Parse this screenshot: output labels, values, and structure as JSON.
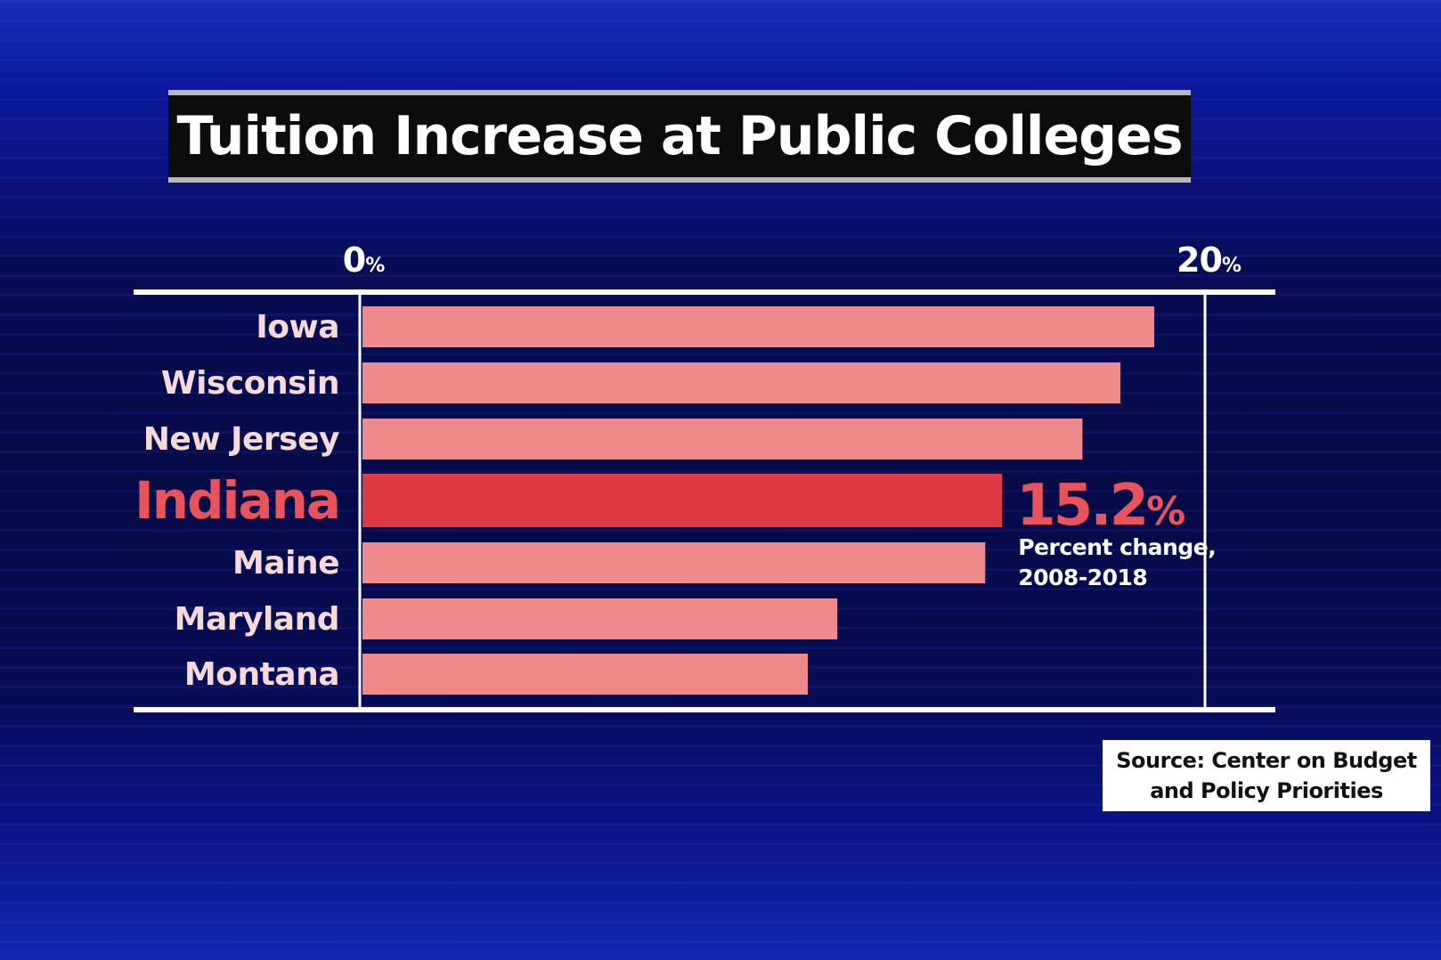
{
  "chart_data": {
    "type": "bar",
    "orientation": "horizontal",
    "title": "Tuition Increase at Public Colleges",
    "categories": [
      "Iowa",
      "Wisconsin",
      "New Jersey",
      "Indiana",
      "Maine",
      "Maryland",
      "Montana"
    ],
    "values": [
      18.8,
      18.0,
      17.1,
      15.2,
      14.8,
      11.3,
      10.6
    ],
    "highlight": "Indiana",
    "xlim": [
      0,
      20
    ],
    "ticks": [
      {
        "value": 0,
        "num": "0",
        "unit": "%"
      },
      {
        "value": 20,
        "num": "20",
        "unit": "%"
      }
    ],
    "annotation": {
      "value_num": "15.2",
      "value_unit": "%",
      "label_line1": "Percent change,",
      "label_line2": "2008-2018"
    },
    "colors": {
      "bar": "#ef8a8c",
      "highlight_bar": "#de3a44",
      "label": "#f8d9da",
      "highlight_label": "#e9545c",
      "axis": "#ffffff"
    }
  },
  "source": {
    "line1": "Source: Center on Budget",
    "line2": "and Policy Priorities"
  }
}
